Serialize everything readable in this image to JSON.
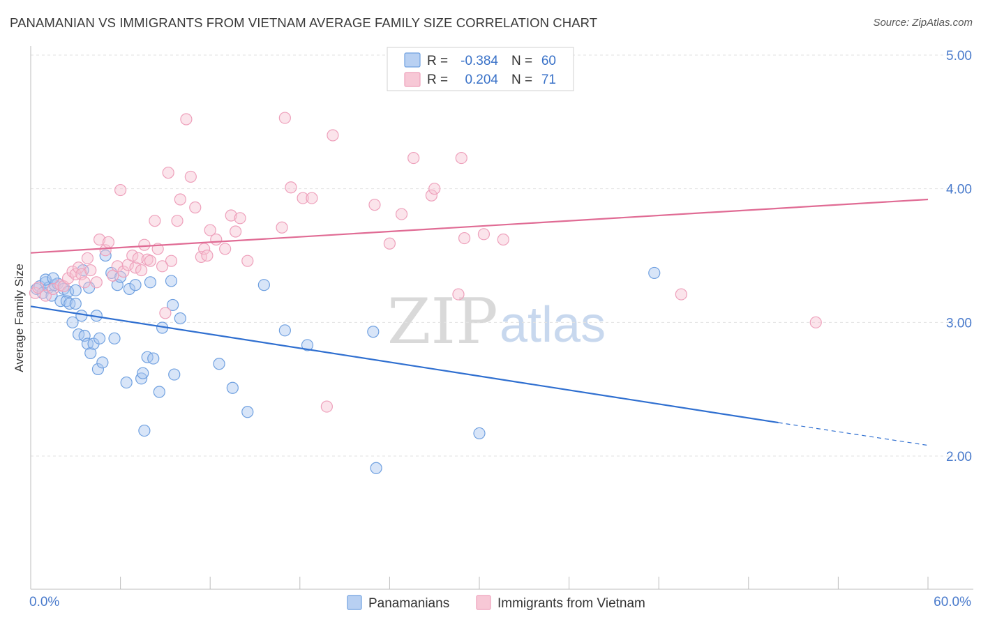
{
  "title": "PANAMANIAN VS IMMIGRANTS FROM VIETNAM AVERAGE FAMILY SIZE CORRELATION CHART",
  "source": "Source: ZipAtlas.com",
  "watermark": {
    "zip": "ZIP",
    "atlas": "atlas"
  },
  "chart_data": {
    "type": "scatter",
    "xlabel": "",
    "ylabel": "Average Family Size",
    "xlim": [
      0,
      60
    ],
    "ylim": [
      1.0,
      5.1
    ],
    "x_tick_labels": [
      "0.0%",
      "60.0%"
    ],
    "y_ticks": [
      2.0,
      3.0,
      4.0,
      5.0
    ],
    "y_tick_labels": [
      "2.00",
      "3.00",
      "4.00",
      "5.00"
    ],
    "grid": true,
    "legend": {
      "position": "top-center",
      "rows": [
        {
          "r_label": "R =",
          "r_value": "-0.384",
          "n_label": "N =",
          "n_value": "60"
        },
        {
          "r_label": "R =",
          "r_value": "0.204",
          "n_label": "N =",
          "n_value": "71"
        }
      ]
    },
    "series": [
      {
        "name": "Panamanians",
        "color": "#6fa0e0",
        "fill": "#a9c6ef",
        "line_color": "#2f6fd0",
        "trend": {
          "x0": 0,
          "y0": 3.12,
          "x1": 50,
          "y1": 2.25,
          "dashed_to_x": 60,
          "dashed_to_y": 2.08
        },
        "points": [
          [
            0.4,
            3.25
          ],
          [
            0.6,
            3.27
          ],
          [
            0.8,
            3.22
          ],
          [
            1.0,
            3.3
          ],
          [
            1.2,
            3.26
          ],
          [
            1.4,
            3.2
          ],
          [
            1.6,
            3.28
          ],
          [
            1.8,
            3.29
          ],
          [
            2.0,
            3.16
          ],
          [
            2.2,
            3.25
          ],
          [
            2.4,
            3.16
          ],
          [
            2.6,
            3.14
          ],
          [
            2.8,
            3.0
          ],
          [
            3.0,
            3.14
          ],
          [
            3.2,
            2.91
          ],
          [
            3.4,
            3.05
          ],
          [
            3.5,
            3.39
          ],
          [
            3.6,
            2.9
          ],
          [
            3.8,
            2.84
          ],
          [
            3.9,
            3.26
          ],
          [
            4.0,
            2.77
          ],
          [
            4.2,
            2.84
          ],
          [
            4.4,
            3.05
          ],
          [
            4.5,
            2.65
          ],
          [
            4.6,
            2.88
          ],
          [
            4.8,
            2.7
          ],
          [
            5.0,
            3.5
          ],
          [
            5.4,
            3.37
          ],
          [
            5.6,
            2.88
          ],
          [
            5.8,
            3.28
          ],
          [
            6.0,
            3.34
          ],
          [
            6.4,
            2.55
          ],
          [
            6.6,
            3.25
          ],
          [
            7.0,
            3.28
          ],
          [
            7.4,
            2.58
          ],
          [
            7.5,
            2.62
          ],
          [
            7.6,
            2.19
          ],
          [
            7.8,
            2.74
          ],
          [
            8.0,
            3.3
          ],
          [
            8.2,
            2.73
          ],
          [
            8.6,
            2.48
          ],
          [
            8.8,
            2.96
          ],
          [
            9.4,
            3.31
          ],
          [
            9.5,
            3.13
          ],
          [
            9.6,
            2.61
          ],
          [
            10.0,
            3.03
          ],
          [
            12.6,
            2.69
          ],
          [
            13.5,
            2.51
          ],
          [
            14.5,
            2.33
          ],
          [
            15.6,
            3.28
          ],
          [
            17.0,
            2.94
          ],
          [
            18.5,
            2.83
          ],
          [
            22.9,
            2.93
          ],
          [
            23.1,
            1.91
          ],
          [
            30.0,
            2.17
          ],
          [
            41.7,
            3.37
          ],
          [
            1.0,
            3.32
          ],
          [
            2.5,
            3.23
          ],
          [
            3.0,
            3.24
          ],
          [
            1.5,
            3.33
          ]
        ]
      },
      {
        "name": "Immigrants from Vietnam",
        "color": "#eea0bb",
        "fill": "#f7c3d3",
        "line_color": "#e06b94",
        "trend": {
          "x0": 0,
          "y0": 3.52,
          "x1": 60,
          "y1": 3.92
        },
        "points": [
          [
            0.3,
            3.22
          ],
          [
            0.5,
            3.26
          ],
          [
            1.0,
            3.2
          ],
          [
            1.5,
            3.25
          ],
          [
            2.0,
            3.28
          ],
          [
            2.2,
            3.27
          ],
          [
            2.5,
            3.33
          ],
          [
            2.8,
            3.38
          ],
          [
            3.0,
            3.36
          ],
          [
            3.2,
            3.41
          ],
          [
            3.4,
            3.36
          ],
          [
            3.6,
            3.3
          ],
          [
            3.8,
            3.48
          ],
          [
            4.0,
            3.39
          ],
          [
            4.4,
            3.3
          ],
          [
            4.6,
            3.62
          ],
          [
            5.0,
            3.54
          ],
          [
            5.2,
            3.6
          ],
          [
            5.5,
            3.35
          ],
          [
            5.8,
            3.42
          ],
          [
            6.0,
            3.99
          ],
          [
            6.2,
            3.38
          ],
          [
            6.5,
            3.43
          ],
          [
            6.8,
            3.5
          ],
          [
            7.0,
            3.41
          ],
          [
            7.2,
            3.48
          ],
          [
            7.4,
            3.39
          ],
          [
            7.6,
            3.58
          ],
          [
            7.8,
            3.47
          ],
          [
            8.0,
            3.46
          ],
          [
            8.3,
            3.76
          ],
          [
            8.5,
            3.55
          ],
          [
            8.8,
            3.42
          ],
          [
            9.0,
            3.07
          ],
          [
            9.2,
            4.12
          ],
          [
            9.4,
            3.46
          ],
          [
            9.8,
            3.76
          ],
          [
            10.0,
            3.92
          ],
          [
            10.4,
            4.52
          ],
          [
            10.7,
            4.09
          ],
          [
            11.0,
            3.86
          ],
          [
            11.4,
            3.49
          ],
          [
            11.6,
            3.55
          ],
          [
            11.8,
            3.5
          ],
          [
            12.0,
            3.69
          ],
          [
            12.4,
            3.62
          ],
          [
            13.0,
            3.55
          ],
          [
            13.4,
            3.8
          ],
          [
            13.7,
            3.68
          ],
          [
            14.0,
            3.78
          ],
          [
            14.5,
            3.46
          ],
          [
            16.8,
            3.71
          ],
          [
            17.0,
            4.53
          ],
          [
            17.4,
            4.01
          ],
          [
            18.2,
            3.93
          ],
          [
            18.8,
            3.93
          ],
          [
            19.8,
            2.37
          ],
          [
            20.2,
            4.4
          ],
          [
            23.0,
            3.88
          ],
          [
            24.0,
            3.59
          ],
          [
            24.8,
            3.81
          ],
          [
            25.6,
            4.23
          ],
          [
            26.8,
            3.95
          ],
          [
            27.0,
            4.0
          ],
          [
            28.6,
            3.21
          ],
          [
            28.8,
            4.23
          ],
          [
            29.0,
            3.63
          ],
          [
            30.3,
            3.66
          ],
          [
            31.6,
            3.62
          ],
          [
            43.5,
            3.21
          ],
          [
            52.5,
            3.0
          ]
        ]
      }
    ]
  }
}
